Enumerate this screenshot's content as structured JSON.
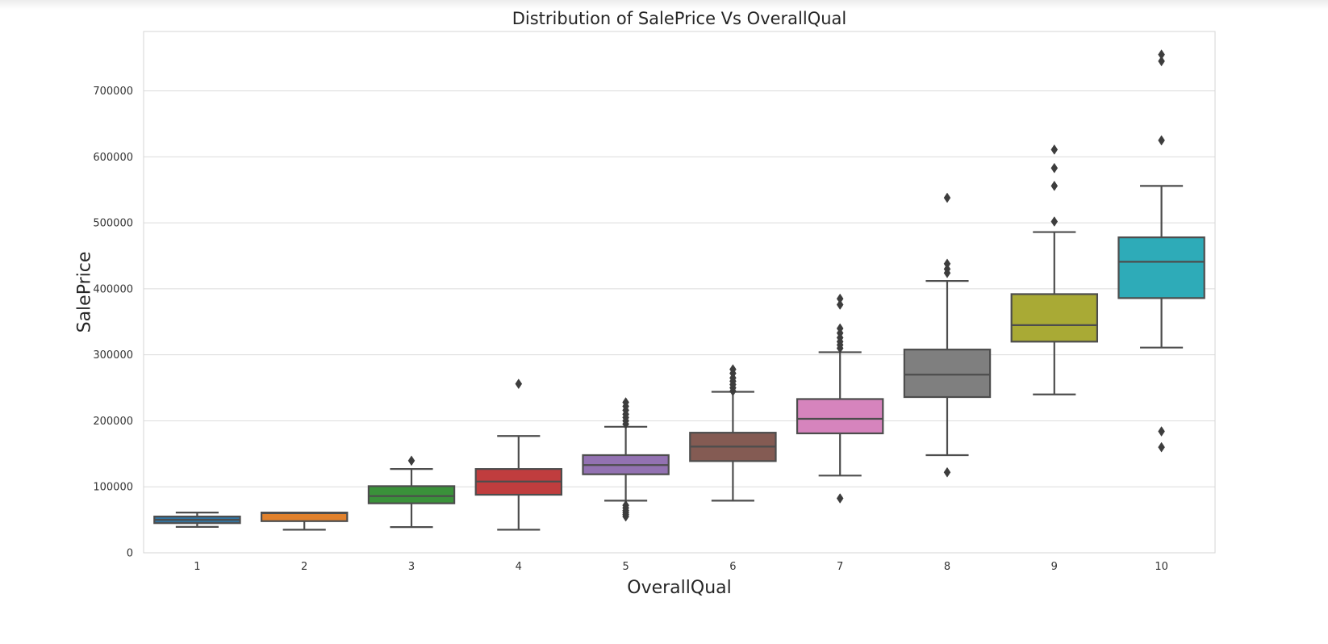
{
  "chart_data": {
    "type": "box",
    "title": "Distribution of SalePrice Vs OverallQual",
    "xlabel": "OverallQual",
    "ylabel": "SalePrice",
    "ylim": [
      0,
      790000
    ],
    "yticks": [
      0,
      100000,
      200000,
      300000,
      400000,
      500000,
      600000,
      700000
    ],
    "ytick_labels": [
      "0",
      "100000",
      "200000",
      "300000",
      "400000",
      "500000",
      "600000",
      "700000"
    ],
    "grid": true,
    "categories": [
      "1",
      "2",
      "3",
      "4",
      "5",
      "6",
      "7",
      "8",
      "9",
      "10"
    ],
    "boxes": [
      {
        "category": "1",
        "color": "#3274a1",
        "whisker_low": 39300,
        "q1": 45000,
        "median": 50000,
        "q3": 55000,
        "whisker_high": 61000,
        "outliers": []
      },
      {
        "category": "2",
        "color": "#e1812c",
        "whisker_low": 35000,
        "q1": 48000,
        "median": 60000,
        "q3": 61000,
        "whisker_high": 61000,
        "outliers": []
      },
      {
        "category": "3",
        "color": "#3a923a",
        "whisker_low": 39000,
        "q1": 75000,
        "median": 86000,
        "q3": 101000,
        "whisker_high": 127000,
        "outliers": [
          139600
        ]
      },
      {
        "category": "4",
        "color": "#c03d3e",
        "whisker_low": 35000,
        "q1": 88000,
        "median": 108000,
        "q3": 127000,
        "whisker_high": 177000,
        "outliers": [
          256000
        ]
      },
      {
        "category": "5",
        "color": "#9372b2",
        "whisker_low": 79000,
        "q1": 119000,
        "median": 133000,
        "q3": 148000,
        "whisker_high": 191000,
        "outliers": [
          55000,
          58000,
          61000,
          64000,
          68000,
          72000,
          195000,
          200000,
          205000,
          210000,
          216000,
          222000,
          228000
        ]
      },
      {
        "category": "6",
        "color": "#845b53",
        "whisker_low": 79000,
        "q1": 139000,
        "median": 161000,
        "q3": 182000,
        "whisker_high": 244000,
        "outliers": [
          245000,
          250000,
          255000,
          260000,
          265000,
          272000,
          278000
        ]
      },
      {
        "category": "7",
        "color": "#d684bd",
        "whisker_low": 117000,
        "q1": 181000,
        "median": 203000,
        "q3": 233000,
        "whisker_high": 304000,
        "outliers": [
          82500,
          310000,
          315000,
          320000,
          326000,
          333000,
          340000,
          376000,
          385000
        ]
      },
      {
        "category": "8",
        "color": "#7f7f7f",
        "whisker_low": 148000,
        "q1": 236000,
        "median": 270000,
        "q3": 308000,
        "whisker_high": 412000,
        "outliers": [
          122000,
          424000,
          430000,
          438000,
          538000
        ]
      },
      {
        "category": "9",
        "color": "#a9aa35",
        "whisker_low": 240000,
        "q1": 320000,
        "median": 345000,
        "q3": 392000,
        "whisker_high": 486000,
        "outliers": [
          502000,
          556000,
          583000,
          611000
        ]
      },
      {
        "category": "10",
        "color": "#2eabb8",
        "whisker_low": 311000,
        "q1": 386000,
        "median": 441000,
        "q3": 478000,
        "whisker_high": 556000,
        "outliers": [
          160000,
          184000,
          625000,
          745000,
          755000
        ]
      }
    ]
  }
}
